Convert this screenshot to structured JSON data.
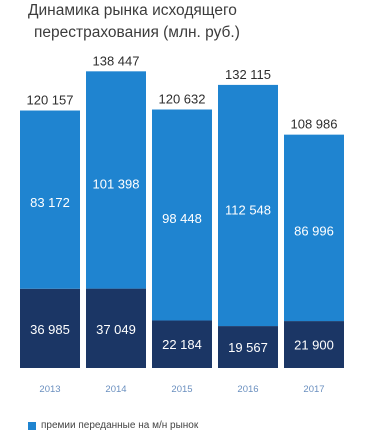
{
  "chart_data": {
    "type": "bar",
    "stacked": true,
    "title_lines": [
      "Динамика рынка исходящего",
      "перестрахования  (млн. руб.)"
    ],
    "categories": [
      "2013",
      "2014",
      "2015",
      "2016",
      "2017"
    ],
    "totals": [
      "120 157",
      "138 447",
      "120 632",
      "132 115",
      "108 986"
    ],
    "series": [
      {
        "values": [
          36985,
          37049,
          22184,
          19567,
          21900
        ],
        "labels": [
          "36 985",
          "37 049",
          "22 184",
          "19 567",
          "21 900"
        ],
        "color": "#1b3665"
      },
      {
        "name": "премии переданные на м/н рынок",
        "values": [
          83172,
          101398,
          98448,
          112548,
          86996
        ],
        "labels": [
          "83 172",
          "101 398",
          "98 448",
          "112 548",
          "86 996"
        ],
        "color": "#1f84d0"
      }
    ],
    "ylim": [
      0,
      140000
    ],
    "grid": false,
    "legend_position": "bottom-left"
  }
}
